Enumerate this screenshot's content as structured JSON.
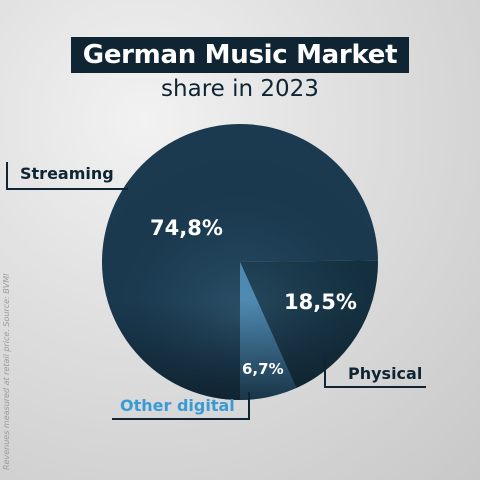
{
  "header": {
    "title": "German Music Market",
    "subtitle": "share in 2023"
  },
  "source_note": "Revenues measured at retail price. Source: BVMI",
  "colors": {
    "streaming": "#1b3a50",
    "physical": "#14303f",
    "other_digital": "#4aa3e0",
    "title_bg": "#0f2533",
    "accent": "#3a9ad6"
  },
  "chart_data": {
    "type": "pie",
    "title": "German Music Market",
    "subtitle": "share in 2023",
    "slices": [
      {
        "name": "Streaming",
        "value": 74.8,
        "label": "74,8%"
      },
      {
        "name": "Physical",
        "value": 18.5,
        "label": "18,5%"
      },
      {
        "name": "Other digital",
        "value": 6.7,
        "label": "6,7%"
      }
    ]
  }
}
